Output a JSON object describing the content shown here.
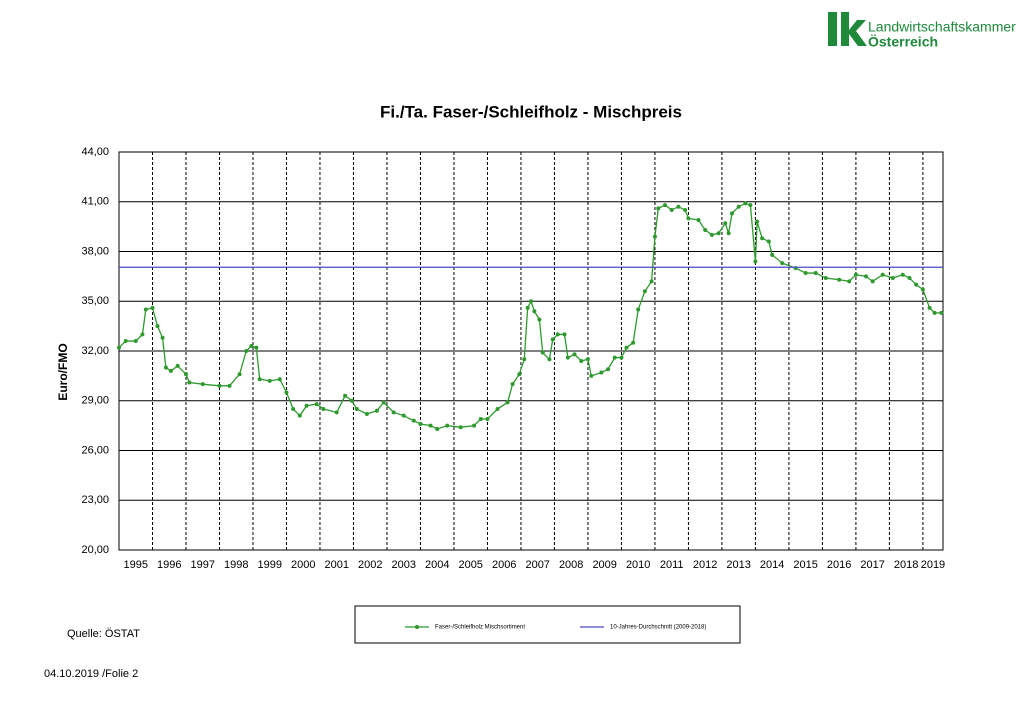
{
  "logo": {
    "mark": "lk",
    "line1": "Landwirtschaftskammer",
    "line2": "Österreich"
  },
  "source": "Quelle: ÖSTAT",
  "footer": "04.10.2019 /Folie 2",
  "chart_data": {
    "type": "line",
    "title": "Fi./Ta. Faser-/Schleifholz - Mischpreis",
    "y_label": "Euro/FMO",
    "xlim": [
      1995,
      2019.6
    ],
    "xticks": [
      {
        "value": 1995,
        "label": "1995"
      },
      {
        "value": 1996,
        "label": "1996"
      },
      {
        "value": 1997,
        "label": "1997"
      },
      {
        "value": 1998,
        "label": "1998"
      },
      {
        "value": 1999,
        "label": "1999"
      },
      {
        "value": 2000,
        "label": "2000"
      },
      {
        "value": 2001,
        "label": "2001"
      },
      {
        "value": 2002,
        "label": "2002"
      },
      {
        "value": 2003,
        "label": "2003"
      },
      {
        "value": 2004,
        "label": "2004"
      },
      {
        "value": 2005,
        "label": "2005"
      },
      {
        "value": 2006,
        "label": "2006"
      },
      {
        "value": 2007,
        "label": "2007"
      },
      {
        "value": 2008,
        "label": "2008"
      },
      {
        "value": 2009,
        "label": "2009"
      },
      {
        "value": 2010,
        "label": "2010"
      },
      {
        "value": 2011,
        "label": "2011"
      },
      {
        "value": 2012,
        "label": "2012"
      },
      {
        "value": 2013,
        "label": "2013"
      },
      {
        "value": 2014,
        "label": "2014"
      },
      {
        "value": 2015,
        "label": "2015"
      },
      {
        "value": 2016,
        "label": "2016"
      },
      {
        "value": 2017,
        "label": "2017"
      },
      {
        "value": 2018,
        "label": "2018"
      },
      {
        "value": 2019,
        "label": "2019"
      }
    ],
    "ylim": [
      20,
      44
    ],
    "yticks": [
      {
        "value": 20,
        "label": "20,00"
      },
      {
        "value": 23,
        "label": "23,00"
      },
      {
        "value": 26,
        "label": "26,00"
      },
      {
        "value": 29,
        "label": "29,00"
      },
      {
        "value": 32,
        "label": "32,00"
      },
      {
        "value": 35,
        "label": "35,00"
      },
      {
        "value": 38,
        "label": "38,00"
      },
      {
        "value": 41,
        "label": "41,00"
      },
      {
        "value": 44,
        "label": "44,00"
      }
    ],
    "grid": true,
    "series": [
      {
        "name": "Faser-/Schleifholz Mischsortiment",
        "color": "#2e9a2e",
        "markers": true,
        "x": [
          1995.0,
          1995.2,
          1995.5,
          1995.7,
          1995.8,
          1996.0,
          1996.15,
          1996.3,
          1996.4,
          1996.55,
          1996.75,
          1997.0,
          1997.1,
          1997.5,
          1998.0,
          1998.3,
          1998.6,
          1998.8,
          1998.95,
          1999.1,
          1999.2,
          1999.5,
          1999.8,
          2000.0,
          2000.2,
          2000.4,
          2000.6,
          2000.9,
          2001.1,
          2001.5,
          2001.75,
          2001.95,
          2002.1,
          2002.4,
          2002.7,
          2002.9,
          2003.2,
          2003.5,
          2003.8,
          2004.0,
          2004.3,
          2004.5,
          2004.8,
          2005.2,
          2005.6,
          2005.8,
          2006.0,
          2006.3,
          2006.6,
          2006.75,
          2006.95,
          2007.1,
          2007.2,
          2007.3,
          2007.4,
          2007.55,
          2007.65,
          2007.85,
          2007.95,
          2008.1,
          2008.3,
          2008.4,
          2008.6,
          2008.8,
          2009.0,
          2009.1,
          2009.4,
          2009.6,
          2009.8,
          2010.0,
          2010.15,
          2010.35,
          2010.5,
          2010.7,
          2010.9,
          2011.0,
          2011.1,
          2011.3,
          2011.5,
          2011.7,
          2011.9,
          2012.0,
          2012.3,
          2012.5,
          2012.7,
          2012.9,
          2013.1,
          2013.2,
          2013.3,
          2013.5,
          2013.7,
          2013.85,
          2014.0,
          2014.05,
          2014.2,
          2014.4,
          2014.5,
          2014.8,
          2015.2,
          2015.5,
          2015.8,
          2016.1,
          2016.5,
          2016.8,
          2017.0,
          2017.3,
          2017.5,
          2017.8,
          2018.1,
          2018.4,
          2018.6,
          2018.8,
          2019.0,
          2019.2,
          2019.35,
          2019.55
        ],
        "values": [
          32.2,
          32.6,
          32.6,
          33.0,
          34.5,
          34.6,
          33.5,
          32.8,
          31.0,
          30.8,
          31.1,
          30.6,
          30.1,
          30.0,
          29.9,
          29.9,
          30.6,
          32.0,
          32.3,
          32.2,
          30.3,
          30.2,
          30.3,
          29.5,
          28.5,
          28.1,
          28.7,
          28.8,
          28.5,
          28.3,
          29.3,
          29.0,
          28.5,
          28.2,
          28.4,
          28.9,
          28.3,
          28.1,
          27.8,
          27.6,
          27.5,
          27.3,
          27.5,
          27.4,
          27.5,
          27.9,
          27.9,
          28.5,
          28.9,
          30.0,
          30.6,
          31.5,
          34.6,
          35.0,
          34.4,
          33.9,
          31.9,
          31.5,
          32.7,
          33.0,
          33.0,
          31.6,
          31.8,
          31.4,
          31.5,
          30.5,
          30.7,
          30.9,
          31.6,
          31.6,
          32.2,
          32.5,
          34.5,
          35.6,
          36.2,
          38.9,
          40.6,
          40.8,
          40.5,
          40.7,
          40.5,
          40.0,
          39.9,
          39.3,
          39.0,
          39.1,
          39.7,
          39.1,
          40.3,
          40.7,
          40.9,
          40.8,
          37.4,
          39.8,
          38.8,
          38.6,
          37.8,
          37.3,
          37.0,
          36.7,
          36.7,
          36.4,
          36.3,
          36.2,
          36.6,
          36.5,
          36.2,
          36.6,
          36.4,
          36.6,
          36.4,
          36.0,
          35.7,
          34.6,
          34.3,
          34.3
        ]
      },
      {
        "name": "10-Jahres-Durchschnitt (2009-2018)",
        "color": "#4a4ac8",
        "markers": false,
        "x": [
          1995.0,
          2019.6
        ],
        "values": [
          37.05,
          37.05
        ]
      }
    ]
  }
}
